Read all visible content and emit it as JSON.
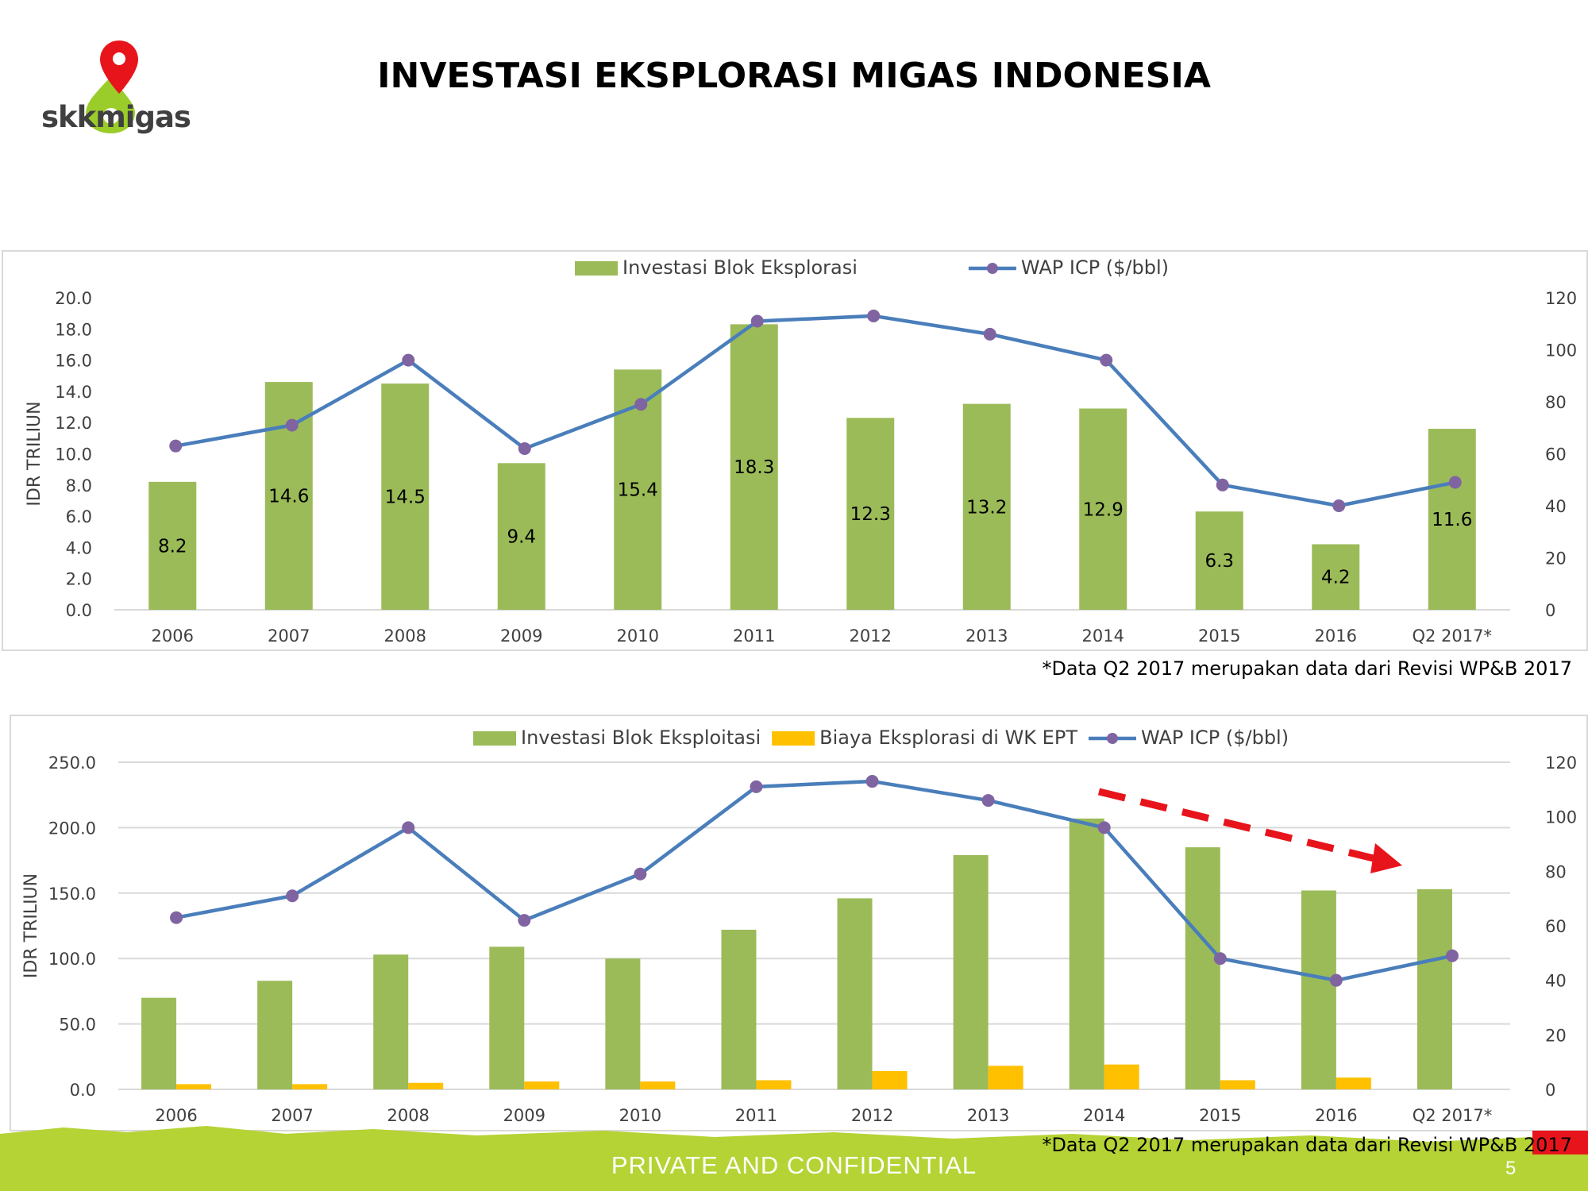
{
  "title": "INVESTASI EKSPLORASI MIGAS INDONESIA",
  "logo": {
    "text": "skkmigas",
    "colors": {
      "pin": "#e8141b",
      "drop": "#9acd2a",
      "text": "#404040"
    }
  },
  "footer": {
    "text": "PRIVATE AND CONFIDENTIAL",
    "page": "5",
    "color": "#b5d334",
    "accent": "#e8141b"
  },
  "colors": {
    "bar_green": "#9bbb59",
    "bar_yellow": "#ffc000",
    "line_blue": "#4a7ebb",
    "marker": "#8064a2",
    "grid": "#d9d9d9",
    "trend_arrow": "#e8141b"
  },
  "chart_data": [
    {
      "type": "bar",
      "categories": [
        "2006",
        "2007",
        "2008",
        "2009",
        "2010",
        "2011",
        "2012",
        "2013",
        "2014",
        "2015",
        "2016",
        "Q2 2017*"
      ],
      "series": [
        {
          "name": "Investasi Blok Eksplorasi",
          "kind": "bar",
          "axis": "left",
          "values": [
            8.2,
            14.6,
            14.5,
            9.4,
            15.4,
            18.3,
            12.3,
            13.2,
            12.9,
            6.3,
            4.2,
            11.6
          ],
          "labels": [
            "8.2",
            "14.6",
            "14.5",
            "9.4",
            "15.4",
            "18.3",
            "12.3",
            "13.2",
            "12.9",
            "6.3",
            "4.2",
            "11.6"
          ]
        },
        {
          "name": "WAP ICP ($/bbl)",
          "kind": "line",
          "axis": "right",
          "values": [
            63,
            71,
            96,
            62,
            79,
            111,
            113,
            106,
            96,
            48,
            40,
            49
          ]
        }
      ],
      "ylabel": "IDR TRILIUN",
      "ylim": [
        0,
        20
      ],
      "yticks": [
        "0.0",
        "2.0",
        "4.0",
        "6.0",
        "8.0",
        "10.0",
        "12.0",
        "14.0",
        "16.0",
        "18.0",
        "20.0"
      ],
      "y2lim": [
        0,
        120
      ],
      "y2ticks": [
        "0",
        "20",
        "40",
        "60",
        "80",
        "100",
        "120"
      ],
      "grid": false,
      "legend": "top-center",
      "footnote": "*Data Q2 2017 merupakan data dari Revisi WP&B 2017"
    },
    {
      "type": "bar",
      "categories": [
        "2006",
        "2007",
        "2008",
        "2009",
        "2010",
        "2011",
        "2012",
        "2013",
        "2014",
        "2015",
        "2016",
        "Q2 2017*"
      ],
      "series": [
        {
          "name": "Investasi Blok Eksploitasi",
          "kind": "bar",
          "axis": "left",
          "values": [
            70,
            83,
            103,
            109,
            100,
            122,
            146,
            179,
            207,
            185,
            152,
            153
          ]
        },
        {
          "name": "Biaya Eksplorasi di WK EPT",
          "kind": "bar",
          "axis": "left",
          "values": [
            4,
            4,
            5,
            6,
            6,
            7,
            14,
            18,
            19,
            7,
            9,
            0
          ]
        },
        {
          "name": "WAP ICP ($/bbl)",
          "kind": "line",
          "axis": "right",
          "values": [
            63,
            71,
            96,
            62,
            79,
            111,
            113,
            106,
            96,
            48,
            40,
            49
          ]
        }
      ],
      "ylabel": "IDR TRILIUN",
      "ylim": [
        0,
        250
      ],
      "yticks": [
        "0.0",
        "50.0",
        "100.0",
        "150.0",
        "200.0",
        "250.0"
      ],
      "y2lim": [
        0,
        120
      ],
      "y2ticks": [
        "0",
        "20",
        "40",
        "60",
        "80",
        "100",
        "120"
      ],
      "grid": true,
      "legend": "top-center",
      "annotation": "dashed red downward trend arrow from 2014 to 2016",
      "footnote": "*Data Q2 2017 merupakan data dari Revisi WP&B 2017"
    }
  ]
}
